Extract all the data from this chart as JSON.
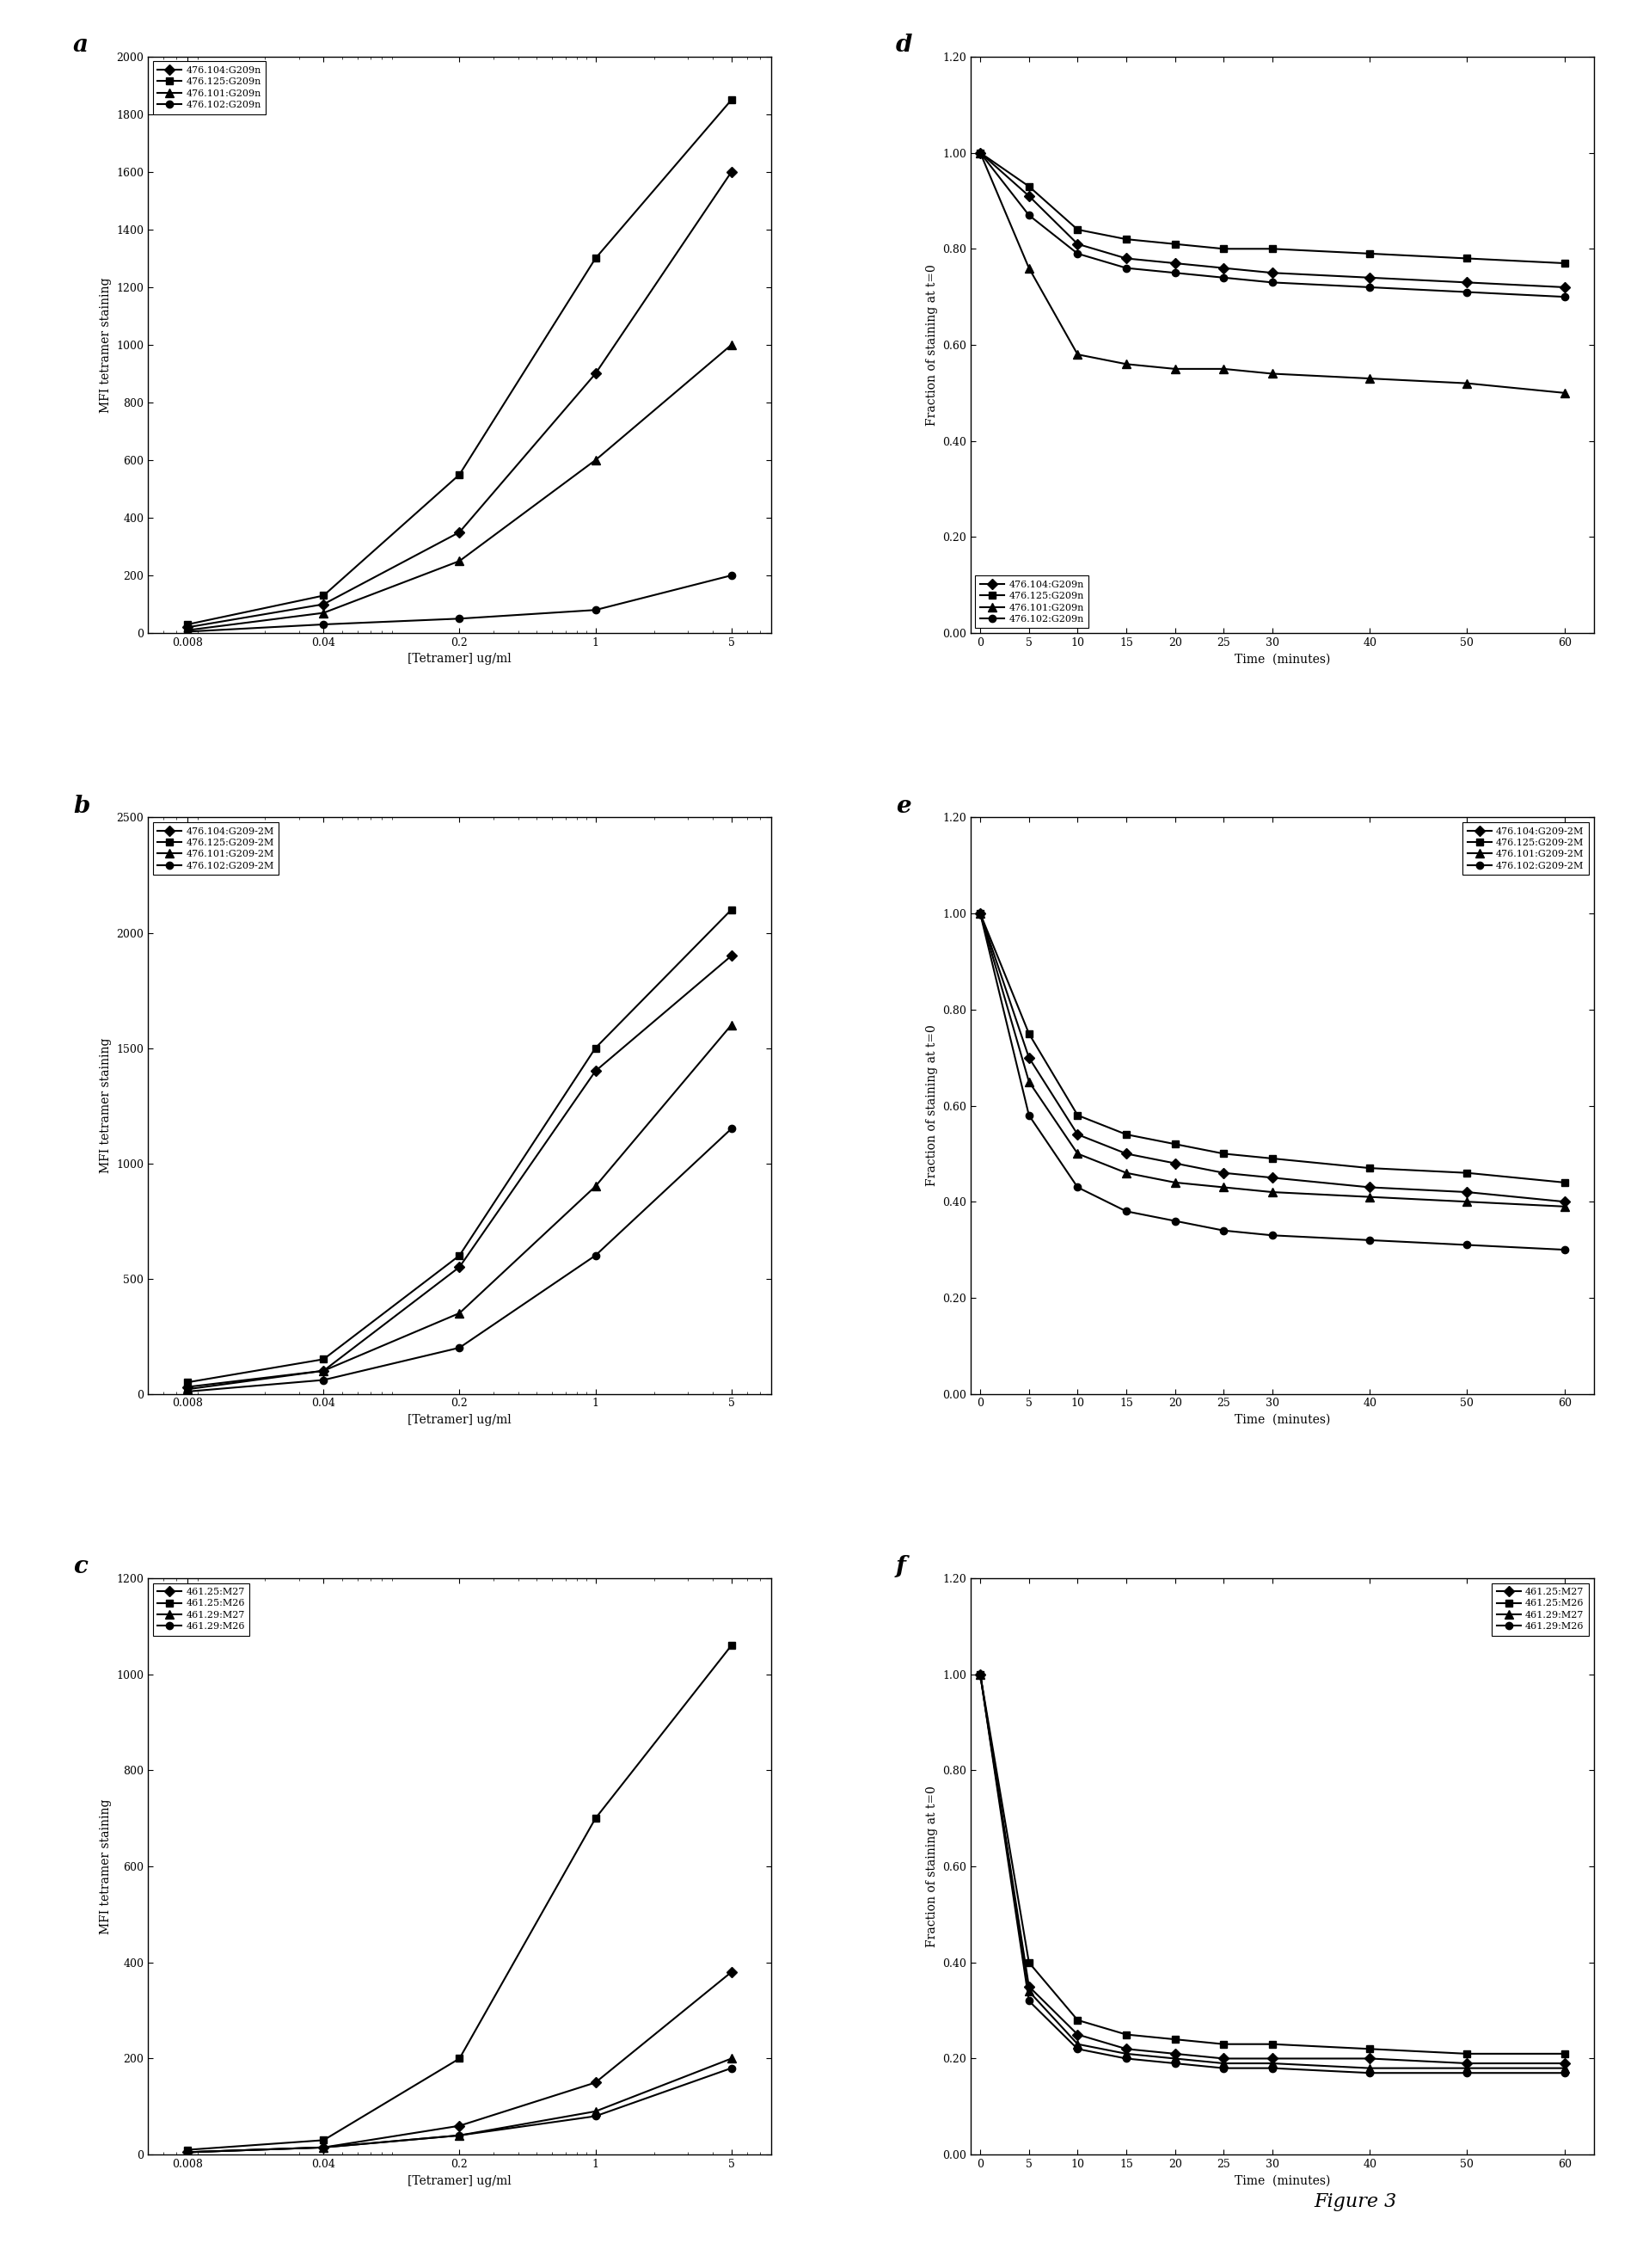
{
  "panel_a": {
    "label": "a",
    "x": [
      0.008,
      0.04,
      0.2,
      1,
      5
    ],
    "series": [
      {
        "label": "476.104:G209n",
        "y": [
          20,
          100,
          350,
          900,
          1600
        ],
        "marker": "D"
      },
      {
        "label": "476.125:G209n",
        "y": [
          30,
          130,
          550,
          1300,
          1850
        ],
        "marker": "s"
      },
      {
        "label": "476.101:G209n",
        "y": [
          10,
          70,
          250,
          600,
          1000
        ],
        "marker": "^"
      },
      {
        "label": "476.102:G209n",
        "y": [
          5,
          30,
          50,
          80,
          200
        ],
        "marker": "o"
      }
    ],
    "ylabel": "MFI tetramer staining",
    "xlabel": "[Tetramer] ug/ml",
    "ylim": [
      0,
      2000
    ],
    "yticks": [
      0,
      200,
      400,
      600,
      800,
      1000,
      1200,
      1400,
      1600,
      1800,
      2000
    ],
    "legend_loc": "upper left"
  },
  "panel_b": {
    "label": "b",
    "x": [
      0.008,
      0.04,
      0.2,
      1,
      5
    ],
    "series": [
      {
        "label": "476.104:G209-2M",
        "y": [
          30,
          100,
          550,
          1400,
          1900
        ],
        "marker": "D"
      },
      {
        "label": "476.125:G209-2M",
        "y": [
          50,
          150,
          600,
          1500,
          2100
        ],
        "marker": "s"
      },
      {
        "label": "476.101:G209-2M",
        "y": [
          20,
          100,
          350,
          900,
          1600
        ],
        "marker": "^"
      },
      {
        "label": "476.102:G209-2M",
        "y": [
          10,
          60,
          200,
          600,
          1150
        ],
        "marker": "o"
      }
    ],
    "ylabel": "MFI tetramer staining",
    "xlabel": "[Tetramer] ug/ml",
    "ylim": [
      0,
      2500
    ],
    "yticks": [
      0,
      500,
      1000,
      1500,
      2000,
      2500
    ],
    "legend_loc": "upper left"
  },
  "panel_c": {
    "label": "c",
    "x": [
      0.008,
      0.04,
      0.2,
      1,
      5
    ],
    "series": [
      {
        "label": "461.25:M27",
        "y": [
          5,
          15,
          60,
          150,
          380
        ],
        "marker": "^"
      },
      {
        "label": "461.25:M26",
        "y": [
          10,
          30,
          200,
          700,
          1060
        ],
        "marker": "s"
      },
      {
        "label": "461.29:M27",
        "y": [
          5,
          15,
          40,
          90,
          200
        ],
        "marker": "D"
      },
      {
        "label": "461.29:M26",
        "y": [
          5,
          15,
          40,
          80,
          180
        ],
        "marker": "o"
      }
    ],
    "ylabel": "MFI tetramer staining",
    "xlabel": "[Tetramer] ug/ml",
    "ylim": [
      0,
      1200
    ],
    "yticks": [
      0,
      200,
      400,
      600,
      800,
      1000,
      1200
    ],
    "legend_loc": "upper left"
  },
  "panel_d": {
    "label": "d",
    "x": [
      0,
      5,
      10,
      15,
      20,
      25,
      30,
      40,
      50,
      60
    ],
    "series": [
      {
        "label": "476.104:G209n",
        "y": [
          1.0,
          0.91,
          0.81,
          0.78,
          0.77,
          0.76,
          0.75,
          0.74,
          0.73,
          0.72
        ],
        "marker": "D"
      },
      {
        "label": "476.125:G209n",
        "y": [
          1.0,
          0.93,
          0.84,
          0.82,
          0.81,
          0.8,
          0.8,
          0.79,
          0.78,
          0.77
        ],
        "marker": "s"
      },
      {
        "label": "476.101:G209n",
        "y": [
          1.0,
          0.76,
          0.58,
          0.56,
          0.55,
          0.55,
          0.54,
          0.53,
          0.52,
          0.5
        ],
        "marker": "^"
      },
      {
        "label": "476.102:G209n",
        "y": [
          1.0,
          0.87,
          0.79,
          0.76,
          0.75,
          0.74,
          0.73,
          0.72,
          0.71,
          0.7
        ],
        "marker": "o"
      }
    ],
    "ylabel": "Fraction of staining at t=0",
    "xlabel": "Time  (minutes)",
    "ylim": [
      0.0,
      1.2
    ],
    "yticks": [
      0.0,
      0.2,
      0.4,
      0.6,
      0.8,
      1.0,
      1.2
    ],
    "legend_loc": "lower left"
  },
  "panel_e": {
    "label": "e",
    "x": [
      0,
      5,
      10,
      15,
      20,
      25,
      30,
      40,
      50,
      60
    ],
    "series": [
      {
        "label": "476.104:G209-2M",
        "y": [
          1.0,
          0.7,
          0.54,
          0.5,
          0.48,
          0.46,
          0.45,
          0.43,
          0.42,
          0.4
        ],
        "marker": "D"
      },
      {
        "label": "476.125:G209-2M",
        "y": [
          1.0,
          0.75,
          0.58,
          0.54,
          0.52,
          0.5,
          0.49,
          0.47,
          0.46,
          0.44
        ],
        "marker": "s"
      },
      {
        "label": "476.101:G209-2M",
        "y": [
          1.0,
          0.65,
          0.5,
          0.46,
          0.44,
          0.43,
          0.42,
          0.41,
          0.4,
          0.39
        ],
        "marker": "^"
      },
      {
        "label": "476.102:G209-2M",
        "y": [
          1.0,
          0.58,
          0.43,
          0.38,
          0.36,
          0.34,
          0.33,
          0.32,
          0.31,
          0.3
        ],
        "marker": "o"
      }
    ],
    "ylabel": "Fraction of staining at t=0",
    "xlabel": "Time  (minutes)",
    "ylim": [
      0.0,
      1.2
    ],
    "yticks": [
      0.0,
      0.2,
      0.4,
      0.6,
      0.8,
      1.0,
      1.2
    ],
    "legend_loc": "upper right"
  },
  "panel_f": {
    "label": "f",
    "x": [
      0,
      5,
      10,
      15,
      20,
      25,
      30,
      40,
      50,
      60
    ],
    "series": [
      {
        "label": "461.25:M27",
        "y": [
          1.0,
          0.35,
          0.25,
          0.22,
          0.21,
          0.2,
          0.2,
          0.2,
          0.19,
          0.19
        ],
        "marker": "^"
      },
      {
        "label": "461.25:M26",
        "y": [
          1.0,
          0.4,
          0.28,
          0.25,
          0.24,
          0.23,
          0.23,
          0.22,
          0.21,
          0.21
        ],
        "marker": "s"
      },
      {
        "label": "461.29:M27",
        "y": [
          1.0,
          0.34,
          0.23,
          0.21,
          0.2,
          0.19,
          0.19,
          0.18,
          0.18,
          0.18
        ],
        "marker": "D"
      },
      {
        "label": "461.29:M26",
        "y": [
          1.0,
          0.32,
          0.22,
          0.2,
          0.19,
          0.18,
          0.18,
          0.17,
          0.17,
          0.17
        ],
        "marker": "o"
      }
    ],
    "ylabel": "Fraction of staining at t=0",
    "xlabel": "Time  (minutes)",
    "ylim": [
      0.0,
      1.2
    ],
    "yticks": [
      0.0,
      0.2,
      0.4,
      0.6,
      0.8,
      1.0,
      1.2
    ],
    "legend_loc": "upper right"
  },
  "figure_label": "Figure 3"
}
